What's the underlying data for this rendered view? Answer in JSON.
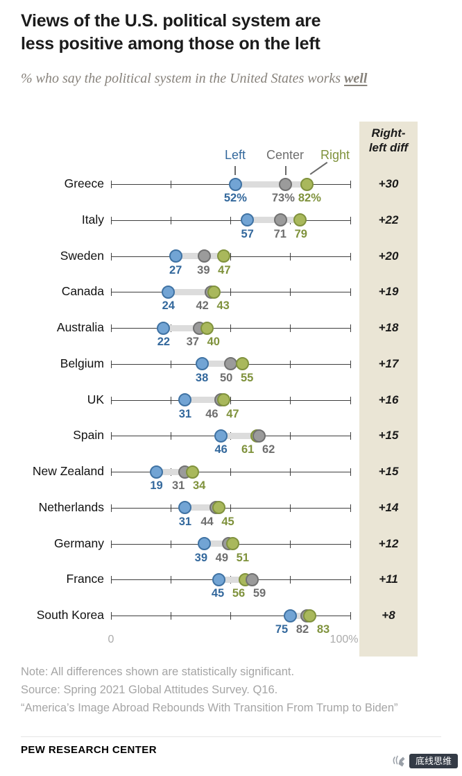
{
  "title": {
    "line1": "Views of the U.S. political system are",
    "line2": "less positive among those on the left"
  },
  "subtitle": {
    "prefix": "% who say the political system in the United States works ",
    "emphasis": "well"
  },
  "legend": {
    "left": "Left",
    "center": "Center",
    "right": "Right"
  },
  "diff_column": {
    "header_line1": "Right-",
    "header_line2": "left diff"
  },
  "axis": {
    "min_label": "0",
    "max_label": "100%"
  },
  "colors": {
    "left_fill": "#72a4d4",
    "left_stroke": "#3f72a3",
    "left_text": "#33689c",
    "center_fill": "#9b9b9b",
    "center_stroke": "#717171",
    "center_text": "#6e6e6e",
    "right_fill": "#a9b85c",
    "right_stroke": "#80923d",
    "right_text": "#7f923c",
    "connector": "#dcdcdc",
    "line": "#3d3d3d",
    "diff_background": "#eae5d5",
    "diff_text": "#1a1a1a"
  },
  "chart_data": {
    "type": "dot-plot",
    "xlim": [
      0,
      100
    ],
    "categories": [
      "Greece",
      "Italy",
      "Sweden",
      "Canada",
      "Australia",
      "Belgium",
      "UK",
      "Spain",
      "New Zealand",
      "Netherlands",
      "Germany",
      "France",
      "South Korea"
    ],
    "series": [
      {
        "name": "Left",
        "values": [
          52,
          57,
          27,
          24,
          22,
          38,
          31,
          46,
          19,
          31,
          39,
          45,
          75
        ]
      },
      {
        "name": "Center",
        "values": [
          73,
          71,
          39,
          42,
          37,
          50,
          46,
          62,
          31,
          44,
          49,
          59,
          82
        ]
      },
      {
        "name": "Right",
        "values": [
          82,
          79,
          47,
          43,
          40,
          55,
          47,
          61,
          34,
          45,
          51,
          56,
          83
        ]
      }
    ],
    "diffs": [
      "+30",
      "+22",
      "+20",
      "+19",
      "+18",
      "+17",
      "+16",
      "+15",
      "+15",
      "+14",
      "+12",
      "+11",
      "+8"
    ],
    "first_row_value_suffix": "%"
  },
  "notes": [
    "Note: All differences shown are statistically significant.",
    "Source: Spring 2021 Global Attitudes Survey. Q16.",
    "“America’s Image Abroad Rebounds With Transition From Trump to Biden”"
  ],
  "footer": {
    "brand": "PEW RESEARCH CENTER"
  },
  "watermark": {
    "icon": "flick-hand-icon",
    "text": "底线思维"
  }
}
